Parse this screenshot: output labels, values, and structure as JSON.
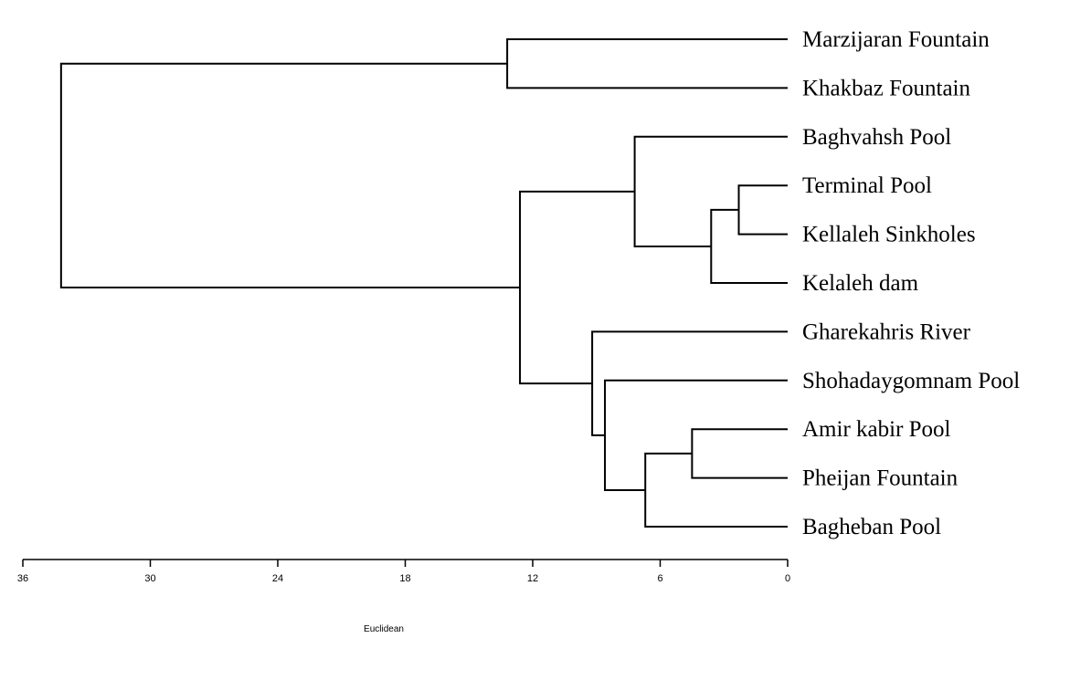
{
  "chart_data": {
    "type": "dendrogram",
    "title": "",
    "xlabel": "Euclidean",
    "ylabel": "",
    "xlim": [
      36,
      0
    ],
    "xticks": [
      36,
      30,
      24,
      18,
      12,
      6,
      0
    ],
    "leaves": [
      "Marzijaran Fountain",
      "Khakbaz Fountain",
      "Baghvahsh Pool",
      "Terminal Pool",
      "Kellaleh Sinkholes",
      "Kelaleh dam",
      "Gharekahris River",
      "Shohadaygomnam Pool",
      "Amir kabir Pool",
      "Pheijan Fountain",
      "Bagheban Pool"
    ],
    "merges": [
      {
        "id": "m1",
        "left": "L3",
        "right": "L4",
        "height": 2.3
      },
      {
        "id": "m2",
        "left": "m1",
        "right": "L5",
        "height": 3.6
      },
      {
        "id": "m3",
        "left": "L2",
        "right": "m2",
        "height": 7.2
      },
      {
        "id": "m4",
        "left": "L8",
        "right": "L9",
        "height": 4.5
      },
      {
        "id": "m5",
        "left": "m4",
        "right": "L10",
        "height": 6.7
      },
      {
        "id": "m6",
        "left": "L7",
        "right": "m5",
        "height": 8.6
      },
      {
        "id": "m7",
        "left": "L6",
        "right": "m6",
        "height": 9.2
      },
      {
        "id": "m8",
        "left": "m3",
        "right": "m7",
        "height": 12.6
      },
      {
        "id": "m9",
        "left": "L0",
        "right": "L1",
        "height": 13.2
      },
      {
        "id": "m10",
        "left": "m9",
        "right": "m8",
        "height": 34.2
      }
    ]
  }
}
